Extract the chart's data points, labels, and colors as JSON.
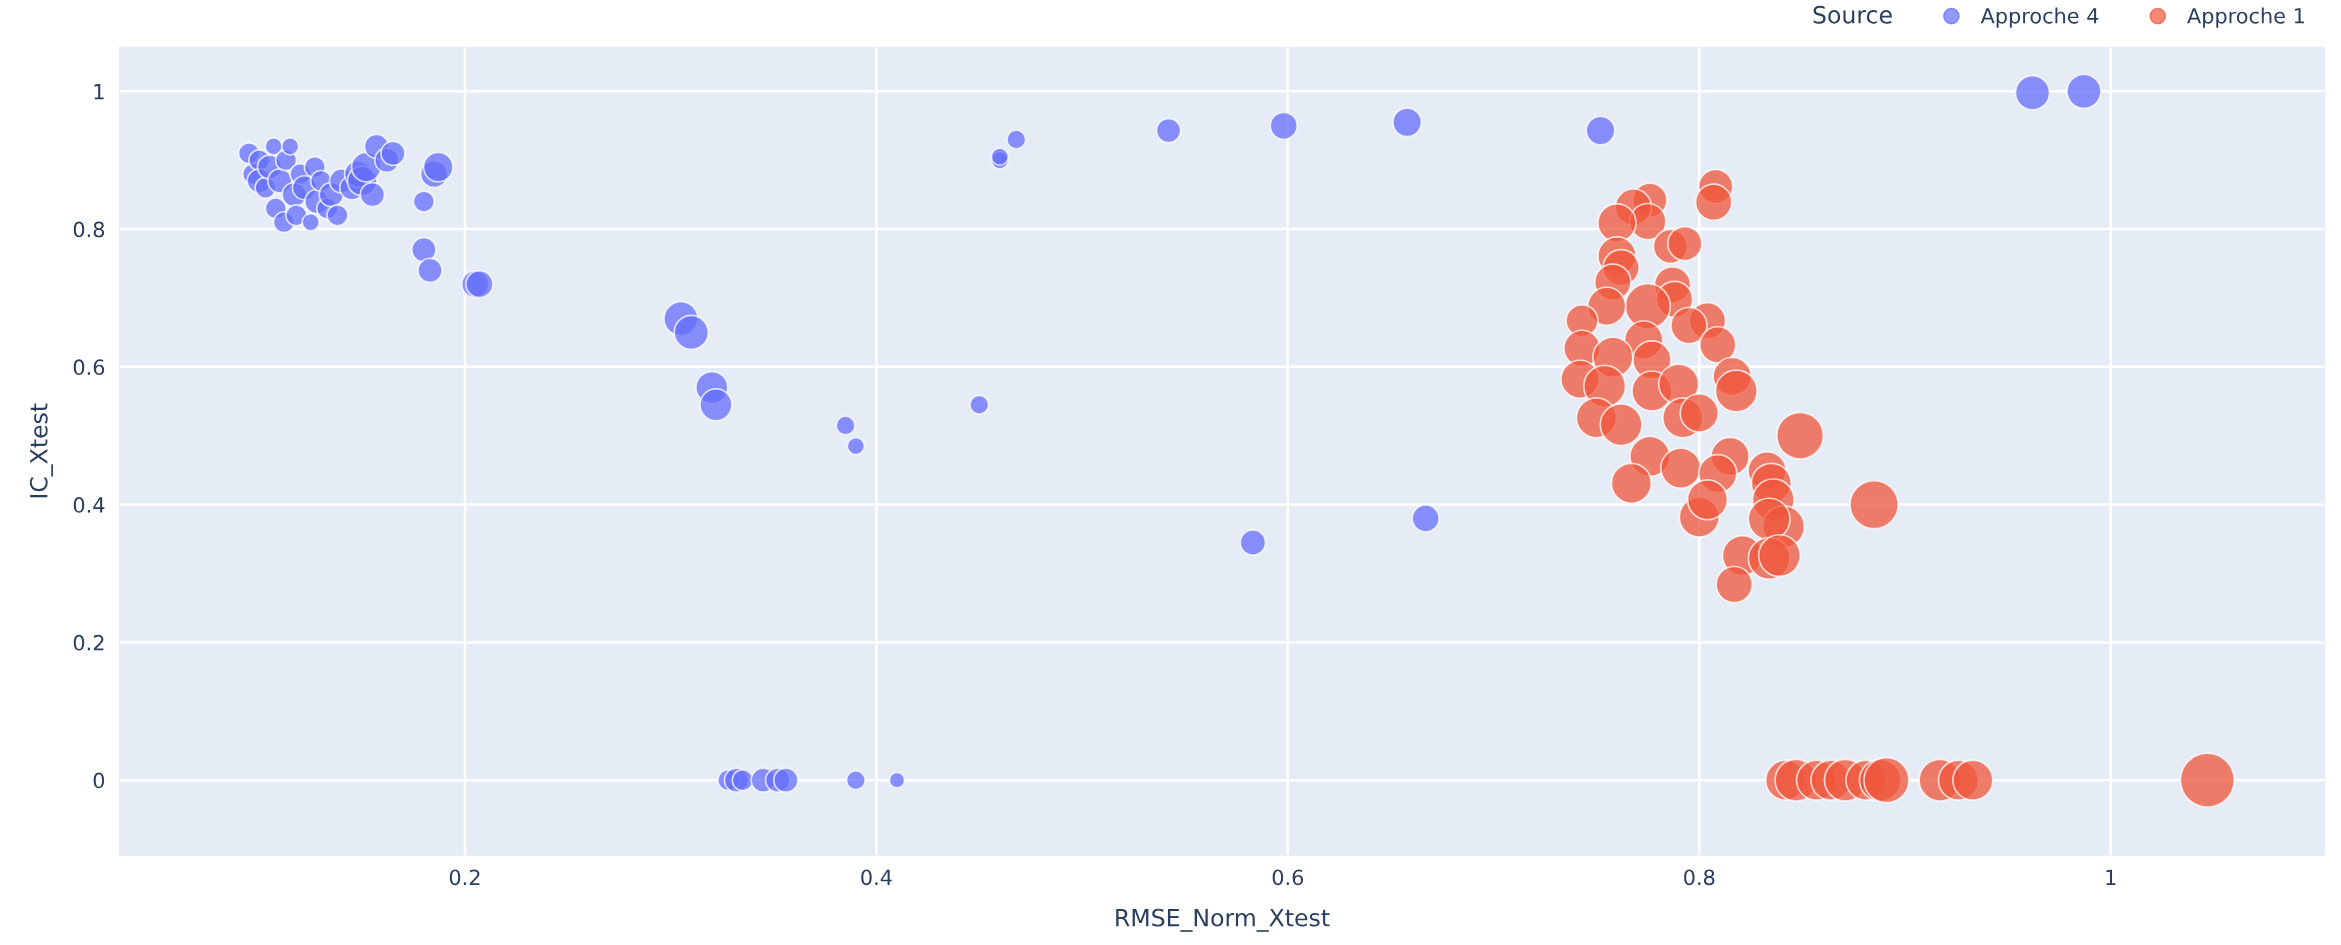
{
  "chart_data": {
    "type": "bubble",
    "xlabel": "RMSE_Norm_Xtest",
    "ylabel": "IC_Xtest",
    "legend_title": "Source",
    "legend": "top right",
    "grid": true,
    "marker": "circle",
    "xlim": [
      0.032,
      1.104
    ],
    "ylim": [
      -0.109,
      1.064
    ],
    "xticks": [
      0.2,
      0.4,
      0.6,
      0.8,
      1
    ],
    "yticks": [
      0,
      0.2,
      0.4,
      0.6,
      0.8,
      1
    ],
    "series": [
      {
        "name": "Approche 4",
        "color": "#636efa",
        "x": [
          0.095,
          0.097,
          0.1,
          0.1,
          0.103,
          0.105,
          0.107,
          0.108,
          0.11,
          0.112,
          0.113,
          0.115,
          0.117,
          0.118,
          0.12,
          0.122,
          0.125,
          0.127,
          0.128,
          0.13,
          0.133,
          0.135,
          0.138,
          0.14,
          0.145,
          0.148,
          0.15,
          0.152,
          0.155,
          0.157,
          0.162,
          0.165,
          0.18,
          0.18,
          0.183,
          0.185,
          0.187,
          0.205,
          0.207,
          0.305,
          0.31,
          0.32,
          0.322,
          0.385,
          0.39,
          0.45,
          0.46,
          0.46,
          0.468,
          0.542,
          0.598,
          0.658,
          0.752,
          0.583,
          0.667,
          0.962,
          0.987,
          0.328,
          0.332,
          0.335,
          0.345,
          0.352,
          0.356,
          0.39,
          0.41
        ],
        "values": [
          0.91,
          0.88,
          0.9,
          0.87,
          0.86,
          0.89,
          0.92,
          0.83,
          0.87,
          0.81,
          0.9,
          0.92,
          0.85,
          0.82,
          0.88,
          0.86,
          0.81,
          0.89,
          0.84,
          0.87,
          0.83,
          0.85,
          0.82,
          0.87,
          0.86,
          0.88,
          0.87,
          0.89,
          0.85,
          0.92,
          0.9,
          0.91,
          0.84,
          0.77,
          0.74,
          0.88,
          0.89,
          0.72,
          0.72,
          0.67,
          0.65,
          0.57,
          0.545,
          0.515,
          0.485,
          0.545,
          0.9,
          0.905,
          0.93,
          0.943,
          0.95,
          0.955,
          0.943,
          0.345,
          0.38,
          0.998,
          1.0,
          0,
          0,
          0,
          0,
          0,
          0,
          0,
          0
        ],
        "sizes": [
          0.15,
          0.15,
          0.15,
          0.2,
          0.15,
          0.2,
          0.1,
          0.15,
          0.2,
          0.15,
          0.15,
          0.1,
          0.2,
          0.15,
          0.15,
          0.2,
          0.1,
          0.15,
          0.2,
          0.15,
          0.15,
          0.2,
          0.15,
          0.2,
          0.2,
          0.25,
          0.3,
          0.3,
          0.2,
          0.2,
          0.2,
          0.2,
          0.15,
          0.2,
          0.2,
          0.25,
          0.3,
          0.25,
          0.25,
          0.4,
          0.4,
          0.35,
          0.35,
          0.12,
          0.1,
          0.12,
          0.1,
          0.1,
          0.12,
          0.2,
          0.25,
          0.28,
          0.28,
          0.22,
          0.25,
          0.4,
          0.4,
          0.15,
          0.2,
          0.15,
          0.2,
          0.2,
          0.2,
          0.12,
          0.08
        ]
      },
      {
        "name": "Approche 1",
        "color": "#ef553b",
        "x": [
          0.808,
          0.807,
          0.776,
          0.768,
          0.775,
          0.76,
          0.786,
          0.793,
          0.76,
          0.762,
          0.758,
          0.787,
          0.788,
          0.775,
          0.755,
          0.743,
          0.804,
          0.795,
          0.773,
          0.809,
          0.743,
          0.758,
          0.777,
          0.742,
          0.754,
          0.777,
          0.79,
          0.816,
          0.818,
          0.792,
          0.75,
          0.762,
          0.8,
          0.776,
          0.815,
          0.791,
          0.809,
          0.767,
          0.833,
          0.835,
          0.836,
          0.841,
          0.834,
          0.8,
          0.804,
          0.821,
          0.834,
          0.839,
          0.817,
          0.849,
          0.885,
          0.842,
          0.847,
          0.857,
          0.864,
          0.871,
          0.881,
          0.888,
          0.891,
          0.917,
          0.926,
          0.933,
          1.047
        ],
        "values": [
          0.862,
          0.839,
          0.842,
          0.832,
          0.811,
          0.809,
          0.775,
          0.779,
          0.761,
          0.744,
          0.723,
          0.719,
          0.698,
          0.688,
          0.688,
          0.667,
          0.667,
          0.66,
          0.639,
          0.632,
          0.627,
          0.614,
          0.61,
          0.582,
          0.572,
          0.565,
          0.575,
          0.586,
          0.565,
          0.526,
          0.526,
          0.516,
          0.533,
          0.47,
          0.47,
          0.453,
          0.445,
          0.431,
          0.449,
          0.431,
          0.407,
          0.368,
          0.379,
          0.382,
          0.407,
          0.326,
          0.322,
          0.326,
          0.284,
          0.5,
          0.4,
          0,
          0,
          0,
          0,
          0,
          0,
          0,
          0,
          0,
          0,
          0,
          0
        ],
        "sizes": [
          0.4,
          0.45,
          0.4,
          0.45,
          0.45,
          0.5,
          0.4,
          0.4,
          0.5,
          0.45,
          0.45,
          0.45,
          0.45,
          0.7,
          0.5,
          0.35,
          0.45,
          0.45,
          0.5,
          0.45,
          0.45,
          0.55,
          0.5,
          0.5,
          0.6,
          0.55,
          0.55,
          0.5,
          0.6,
          0.55,
          0.55,
          0.6,
          0.5,
          0.55,
          0.5,
          0.55,
          0.5,
          0.55,
          0.5,
          0.55,
          0.6,
          0.6,
          0.6,
          0.55,
          0.55,
          0.55,
          0.6,
          0.6,
          0.45,
          0.75,
          0.8,
          0.55,
          0.6,
          0.55,
          0.55,
          0.6,
          0.55,
          0.6,
          0.7,
          0.6,
          0.55,
          0.55,
          1
        ]
      }
    ]
  }
}
